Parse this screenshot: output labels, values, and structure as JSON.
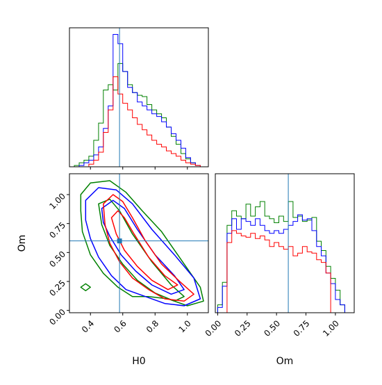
{
  "chart_data": {
    "type": "corner",
    "params": [
      "H0",
      "Om"
    ],
    "truths": {
      "H0": 0.58,
      "Om": 0.6
    },
    "colors": {
      "green": "#008000",
      "blue": "#0000ff",
      "red": "#ff0000",
      "truth": "#1f77b4"
    },
    "panels": [
      {
        "id": "hist-H0",
        "type": "step-histogram",
        "xlim": [
          0.27,
          1.13
        ],
        "ylim": [
          0,
          1.05
        ],
        "x_ticks": [
          0.4,
          0.6,
          0.8,
          1.0
        ],
        "bins": [
          0.27,
          0.3,
          0.33,
          0.36,
          0.39,
          0.42,
          0.45,
          0.48,
          0.51,
          0.54,
          0.57,
          0.6,
          0.63,
          0.66,
          0.69,
          0.72,
          0.75,
          0.78,
          0.81,
          0.84,
          0.87,
          0.9,
          0.93,
          0.96,
          0.99,
          1.02,
          1.05,
          1.08,
          1.11
        ],
        "series": [
          {
            "color": "green",
            "values": [
              0,
              0.01,
              0.03,
              0.05,
              0.08,
              0.2,
              0.33,
              0.58,
              0.62,
              0.58,
              0.78,
              0.72,
              0.62,
              0.56,
              0.54,
              0.53,
              0.47,
              0.43,
              0.4,
              0.37,
              0.3,
              0.23,
              0.17,
              0.1,
              0.06,
              0.03,
              0.01,
              0
            ]
          },
          {
            "color": "blue",
            "values": [
              0,
              0,
              0.01,
              0.03,
              0.05,
              0.09,
              0.15,
              0.29,
              0.46,
              1.0,
              0.93,
              0.72,
              0.6,
              0.56,
              0.49,
              0.46,
              0.43,
              0.4,
              0.38,
              0.34,
              0.3,
              0.25,
              0.2,
              0.14,
              0.07,
              0.03,
              0.01,
              0
            ]
          },
          {
            "color": "red",
            "values": [
              0,
              0,
              0,
              0,
              0.02,
              0.05,
              0.11,
              0.26,
              0.43,
              0.68,
              0.55,
              0.48,
              0.43,
              0.37,
              0.32,
              0.28,
              0.24,
              0.2,
              0.17,
              0.15,
              0.12,
              0.1,
              0.08,
              0.05,
              0.03,
              0.02,
              0.01,
              0
            ]
          }
        ]
      },
      {
        "id": "hist-Om",
        "type": "step-histogram",
        "xlim": [
          -0.02,
          1.16
        ],
        "ylim": [
          0,
          1.05
        ],
        "x_ticks": [
          0.0,
          0.25,
          0.5,
          0.75,
          1.0
        ],
        "x_tick_labels": [
          "0.00",
          "0.25",
          "0.50",
          "0.75",
          "1.00"
        ],
        "x_label": "Om",
        "bins": [
          0.0,
          0.04,
          0.08,
          0.12,
          0.16,
          0.2,
          0.24,
          0.28,
          0.32,
          0.36,
          0.4,
          0.44,
          0.48,
          0.52,
          0.56,
          0.6,
          0.64,
          0.68,
          0.72,
          0.76,
          0.8,
          0.84,
          0.88,
          0.92,
          0.96,
          1.0,
          1.04,
          1.08,
          1.12
        ],
        "series": [
          {
            "color": "green",
            "values": [
              0.06,
              0.23,
              0.66,
              0.77,
              0.73,
              0.71,
              0.82,
              0.73,
              0.8,
              0.84,
              0.73,
              0.71,
              0.68,
              0.73,
              0.69,
              0.84,
              0.72,
              0.73,
              0.69,
              0.7,
              0.72,
              0.54,
              0.47,
              0.35,
              0.26,
              0.17,
              0.06,
              0
            ]
          },
          {
            "color": "blue",
            "values": [
              0.04,
              0.2,
              0.6,
              0.71,
              0.63,
              0.71,
              0.69,
              0.66,
              0.71,
              0.66,
              0.62,
              0.6,
              0.62,
              0.6,
              0.63,
              0.66,
              0.69,
              0.74,
              0.7,
              0.71,
              0.62,
              0.5,
              0.43,
              0.3,
              0.22,
              0.1,
              0.06,
              0
            ]
          },
          {
            "color": "red",
            "values": [
              0,
              0,
              0.53,
              0.62,
              0.6,
              0.58,
              0.57,
              0.6,
              0.56,
              0.58,
              0.55,
              0.5,
              0.53,
              0.5,
              0.48,
              0.5,
              0.43,
              0.45,
              0.5,
              0.46,
              0.45,
              0.4,
              0.38,
              0.3,
              0,
              0,
              0,
              0
            ]
          }
        ]
      },
      {
        "id": "contour-H0-Om",
        "type": "2d-contour",
        "xlim": [
          0.27,
          1.13
        ],
        "ylim": [
          -0.02,
          1.18
        ],
        "x_ticks": [
          0.4,
          0.6,
          0.8,
          1.0
        ],
        "x_tick_labels": [
          "0.4",
          "0.6",
          "0.8",
          "1.0"
        ],
        "y_ticks": [
          0.0,
          0.25,
          0.5,
          0.75,
          1.0
        ],
        "y_tick_labels": [
          "0.00",
          "0.25",
          "0.50",
          "0.75",
          "1.00"
        ],
        "x_label": "H0",
        "y_label": "Om",
        "contours": [
          {
            "color": "green",
            "points": [
              [
                0.34,
                1.0
              ],
              [
                0.4,
                1.1
              ],
              [
                0.52,
                1.12
              ],
              [
                0.62,
                1.02
              ],
              [
                0.72,
                0.86
              ],
              [
                0.84,
                0.68
              ],
              [
                0.96,
                0.44
              ],
              [
                1.08,
                0.2
              ],
              [
                1.1,
                0.08
              ],
              [
                1.0,
                0.04
              ],
              [
                0.88,
                0.1
              ],
              [
                0.76,
                0.12
              ],
              [
                0.66,
                0.12
              ],
              [
                0.57,
                0.2
              ],
              [
                0.48,
                0.32
              ],
              [
                0.4,
                0.48
              ],
              [
                0.35,
                0.68
              ],
              [
                0.34,
                0.86
              ]
            ]
          },
          {
            "color": "green",
            "points": [
              [
                0.45,
                0.92
              ],
              [
                0.52,
                0.96
              ],
              [
                0.58,
                0.86
              ],
              [
                0.66,
                0.66
              ],
              [
                0.78,
                0.42
              ],
              [
                0.9,
                0.22
              ],
              [
                0.98,
                0.12
              ],
              [
                0.92,
                0.08
              ],
              [
                0.8,
                0.15
              ],
              [
                0.69,
                0.26
              ],
              [
                0.6,
                0.4
              ],
              [
                0.52,
                0.56
              ],
              [
                0.47,
                0.74
              ]
            ]
          },
          {
            "color": "green",
            "points": [
              [
                0.34,
                0.2
              ],
              [
                0.37,
                0.23
              ],
              [
                0.4,
                0.2
              ],
              [
                0.37,
                0.17
              ]
            ]
          },
          {
            "color": "blue",
            "points": [
              [
                0.37,
                0.95
              ],
              [
                0.45,
                1.06
              ],
              [
                0.56,
                1.04
              ],
              [
                0.66,
                0.92
              ],
              [
                0.78,
                0.7
              ],
              [
                0.92,
                0.48
              ],
              [
                1.04,
                0.28
              ],
              [
                1.08,
                0.1
              ],
              [
                0.98,
                0.04
              ],
              [
                0.86,
                0.06
              ],
              [
                0.74,
                0.12
              ],
              [
                0.62,
                0.18
              ],
              [
                0.53,
                0.3
              ],
              [
                0.45,
                0.46
              ],
              [
                0.4,
                0.62
              ],
              [
                0.37,
                0.78
              ]
            ]
          },
          {
            "color": "blue",
            "points": [
              [
                0.47,
                0.88
              ],
              [
                0.54,
                0.95
              ],
              [
                0.61,
                0.88
              ],
              [
                0.69,
                0.7
              ],
              [
                0.8,
                0.48
              ],
              [
                0.92,
                0.3
              ],
              [
                0.98,
                0.18
              ],
              [
                0.9,
                0.14
              ],
              [
                0.78,
                0.22
              ],
              [
                0.68,
                0.34
              ],
              [
                0.59,
                0.48
              ],
              [
                0.52,
                0.64
              ],
              [
                0.48,
                0.76
              ]
            ]
          },
          {
            "color": "red",
            "points": [
              [
                0.48,
                0.92
              ],
              [
                0.54,
                1.0
              ],
              [
                0.6,
                0.94
              ],
              [
                0.66,
                0.8
              ],
              [
                0.74,
                0.6
              ],
              [
                0.84,
                0.4
              ],
              [
                0.96,
                0.24
              ],
              [
                1.04,
                0.14
              ],
              [
                0.98,
                0.08
              ],
              [
                0.86,
                0.1
              ],
              [
                0.76,
                0.18
              ],
              [
                0.66,
                0.28
              ],
              [
                0.58,
                0.42
              ],
              [
                0.52,
                0.58
              ],
              [
                0.49,
                0.74
              ]
            ]
          },
          {
            "color": "red",
            "points": [
              [
                0.53,
                0.8
              ],
              [
                0.57,
                0.86
              ],
              [
                0.61,
                0.8
              ],
              [
                0.67,
                0.66
              ],
              [
                0.76,
                0.46
              ],
              [
                0.86,
                0.3
              ],
              [
                0.94,
                0.22
              ],
              [
                0.88,
                0.18
              ],
              [
                0.78,
                0.26
              ],
              [
                0.69,
                0.38
              ],
              [
                0.61,
                0.52
              ],
              [
                0.56,
                0.66
              ]
            ]
          }
        ],
        "marker": {
          "x": 0.58,
          "y": 0.6,
          "color": "truth"
        }
      }
    ]
  }
}
